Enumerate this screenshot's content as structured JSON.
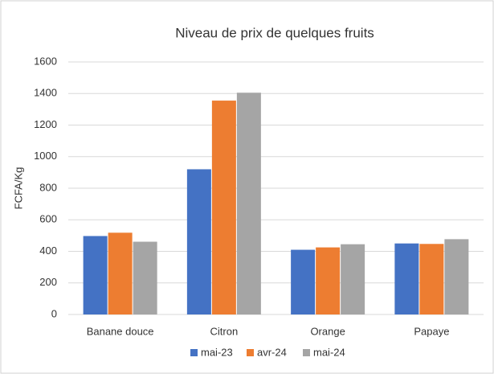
{
  "chart_data": {
    "type": "bar",
    "title": "Niveau de prix de quelques fruits",
    "y_label": "FCFA/Kg",
    "categories": [
      "Banane douce",
      "Citron",
      "Orange",
      "Papaye"
    ],
    "series": [
      {
        "name": "mai-23",
        "color": "#4472c4",
        "values": [
          497,
          920,
          410,
          450
        ]
      },
      {
        "name": "avr-24",
        "color": "#ed7d31",
        "values": [
          518,
          1355,
          425,
          447
        ]
      },
      {
        "name": "mai-24",
        "color": "#a5a5a5",
        "values": [
          461,
          1405,
          445,
          477
        ]
      }
    ],
    "ylim": [
      0,
      1600
    ],
    "yticks": [
      0,
      200,
      400,
      600,
      800,
      1000,
      1200,
      1400,
      1600
    ],
    "grid": true,
    "legend": "bottom"
  }
}
